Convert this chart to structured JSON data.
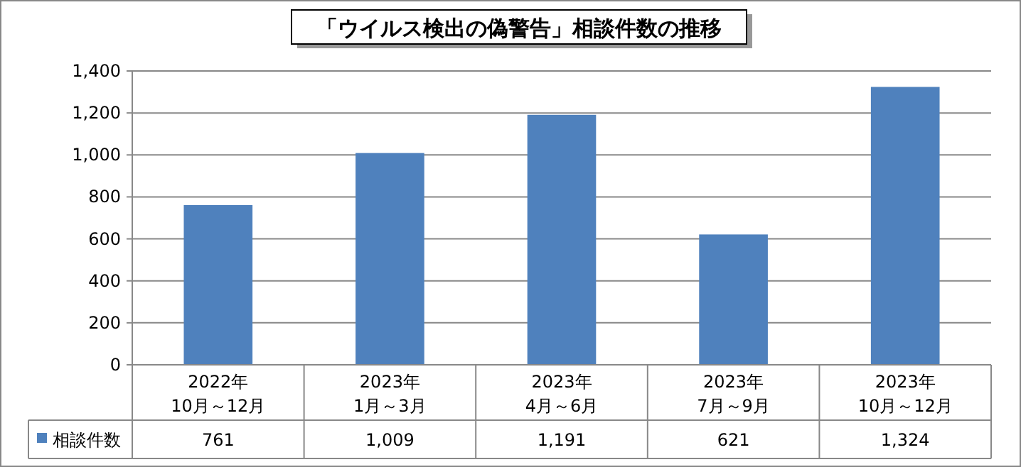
{
  "chart_data": {
    "type": "bar",
    "title": "「ウイルス検出の偽警告」相談件数の推移",
    "categories": [
      "2022年\n10月～12月",
      "2023年\n1月～3月",
      "2023年\n4月～6月",
      "2023年\n7月～9月",
      "2023年\n10月～12月"
    ],
    "series": [
      {
        "name": "相談件数",
        "color": "#4f81bd",
        "values": [
          761,
          1009,
          1191,
          621,
          1324
        ],
        "value_labels": [
          "761",
          "1,009",
          "1,191",
          "621",
          "1,324"
        ]
      }
    ],
    "ylim": [
      0,
      1400
    ],
    "yticks": [
      0,
      200,
      400,
      600,
      800,
      {
        "value": 1000,
        "label": "1,000"
      },
      {
        "value": 1200,
        "label": "1,200"
      },
      {
        "value": 1400,
        "label": "1,400"
      }
    ],
    "grid": "y",
    "legend": "bottom"
  }
}
